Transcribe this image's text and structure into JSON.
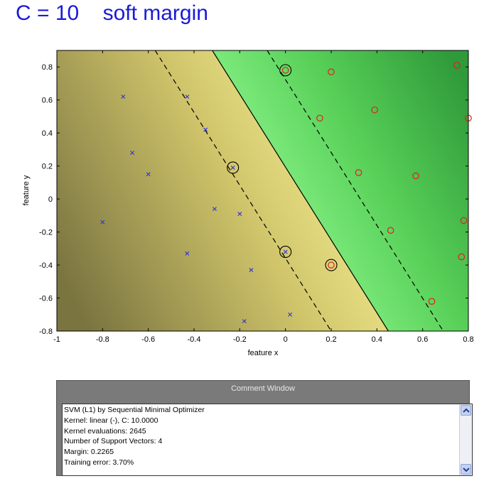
{
  "title": "C = 10    soft margin",
  "chart_data": {
    "type": "scatter",
    "xlabel": "feature x",
    "ylabel": "feature y",
    "xlim": [
      -1,
      0.8
    ],
    "ylim": [
      -0.8,
      0.9
    ],
    "xticks": [
      "-1",
      "-0.8",
      "-0.6",
      "-0.4",
      "-0.2",
      "0",
      "0.2",
      "0.4",
      "0.6",
      "0.8"
    ],
    "yticks": [
      "0.8",
      "0.6",
      "0.4",
      "0.2",
      "0",
      "-0.2",
      "-0.4",
      "-0.6",
      "-0.8"
    ],
    "decision_boundary": {
      "x_at_top": -0.32,
      "x_at_bottom": 0.45
    },
    "margin_lines": [
      {
        "x_at_top": -0.57,
        "x_at_bottom": 0.2
      },
      {
        "x_at_top": -0.08,
        "x_at_bottom": 0.69
      }
    ],
    "series": [
      {
        "marker": "x",
        "color": "#3333cc",
        "x": [
          -0.8,
          -0.71,
          -0.67,
          -0.6,
          -0.43,
          -0.43,
          -0.35,
          -0.31,
          -0.23,
          -0.2,
          -0.15,
          -0.18,
          0.0,
          0.02
        ],
        "y": [
          -0.14,
          0.62,
          0.28,
          0.15,
          0.62,
          -0.33,
          0.42,
          -0.06,
          0.19,
          -0.09,
          -0.43,
          -0.74,
          -0.32,
          -0.7
        ]
      },
      {
        "marker": "o",
        "color": "#e02020",
        "x": [
          0.0,
          0.2,
          0.15,
          0.39,
          0.32,
          0.57,
          0.75,
          0.8,
          0.78,
          0.46,
          0.77,
          0.64,
          0.2
        ],
        "y": [
          0.78,
          0.77,
          0.49,
          0.54,
          0.16,
          0.14,
          0.81,
          0.49,
          -0.13,
          -0.19,
          -0.35,
          -0.62,
          -0.4
        ]
      }
    ],
    "support_vectors": {
      "x": [
        0.0,
        -0.23,
        0.0,
        0.2
      ],
      "y": [
        0.78,
        0.19,
        -0.32,
        -0.4
      ]
    }
  },
  "comment_window": {
    "title": "Comment Window",
    "lines": [
      "SVM (L1) by Sequential Minimal Optimizer",
      "Kernel: linear (-), C: 10.0000",
      "Kernel evaluations: 2645",
      "Number of Support Vectors: 4",
      "Margin: 0.2265",
      "Training error: 3.70%"
    ]
  }
}
